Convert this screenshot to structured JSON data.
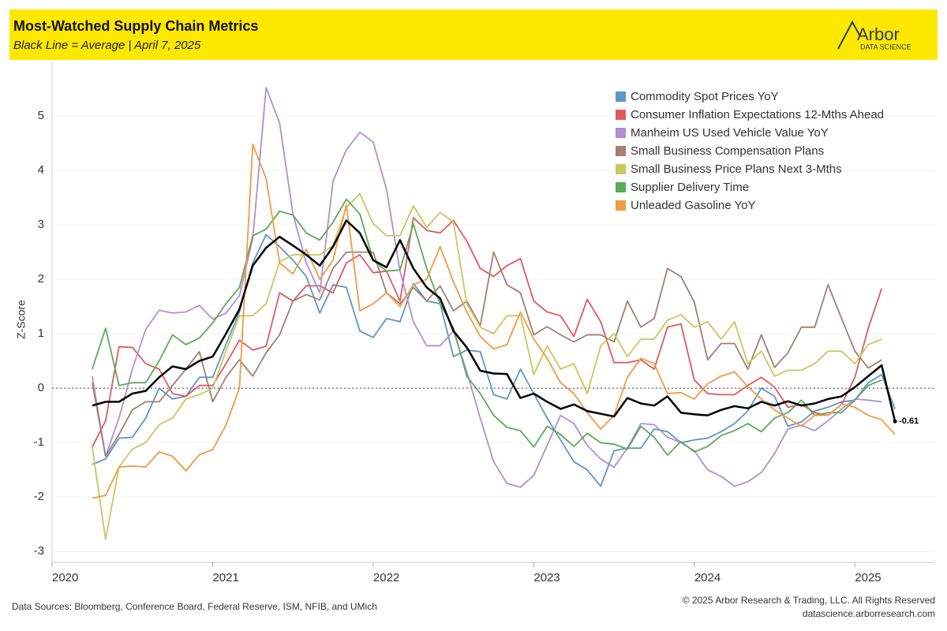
{
  "header": {
    "title": "Most-Watched Supply Chain Metrics",
    "subtitle": "Black Line = Average |  April 7, 2025",
    "logo": "Arbor",
    "logo_sub": "DATA SCIENCE"
  },
  "footer": {
    "sources": "Data Sources: Bloomberg, Conference Board, Federal Reserve, ISM, NFIB, and UMich",
    "copyright": "© 2025 Arbor Research & Trading, LLC. All Rights Reserved",
    "site": "datascience.arborresearch.com"
  },
  "chart_data": {
    "type": "line",
    "y_label": "Z-Score",
    "xlim": [
      2020,
      2025.5
    ],
    "xticks": [
      2020,
      2021,
      2022,
      2023,
      2024,
      2025
    ],
    "ylim": [
      -3.2,
      6
    ],
    "yticks": [
      -3,
      -2,
      -1,
      0,
      1,
      2,
      3,
      4,
      5
    ],
    "grid": true,
    "zero_line": true,
    "legend": "top-right",
    "x": [
      2020.25,
      2020.333,
      2020.417,
      2020.5,
      2020.583,
      2020.667,
      2020.75,
      2020.833,
      2020.917,
      2021.0,
      2021.083,
      2021.167,
      2021.25,
      2021.333,
      2021.417,
      2021.5,
      2021.583,
      2021.667,
      2021.75,
      2021.833,
      2021.917,
      2022.0,
      2022.083,
      2022.167,
      2022.25,
      2022.333,
      2022.417,
      2022.5,
      2022.583,
      2022.667,
      2022.75,
      2022.833,
      2022.917,
      2023.0,
      2023.083,
      2023.167,
      2023.25,
      2023.333,
      2023.417,
      2023.5,
      2023.583,
      2023.667,
      2023.75,
      2023.833,
      2023.917,
      2024.0,
      2024.083,
      2024.167,
      2024.25,
      2024.333,
      2024.417,
      2024.5,
      2024.583,
      2024.667,
      2024.75,
      2024.833,
      2024.917,
      2025.0,
      2025.083,
      2025.167,
      2025.25
    ],
    "series": [
      {
        "name": "Commodity Spot Prices YoY",
        "color": "#5b97c6",
        "values": [
          -1.4,
          -1.3,
          -0.92,
          -0.9,
          -0.55,
          0.0,
          -0.2,
          -0.15,
          0.2,
          0.2,
          0.8,
          1.4,
          2.3,
          2.82,
          2.6,
          2.35,
          2.05,
          1.38,
          1.9,
          1.85,
          1.05,
          0.93,
          1.28,
          1.22,
          1.92,
          1.6,
          1.55,
          0.58,
          0.7,
          0.67,
          -0.12,
          -0.2,
          0.35,
          -0.1,
          -0.55,
          -0.95,
          -1.35,
          -1.5,
          -1.8,
          -1.15,
          -1.1,
          -1.1,
          -0.75,
          -0.8,
          -1.0,
          -0.95,
          -0.92,
          -0.8,
          -0.65,
          -0.42,
          0.0,
          -0.15,
          -0.7,
          -0.62,
          -0.42,
          -0.35,
          -0.25,
          -0.22,
          0.1,
          0.25,
          -0.38
        ]
      },
      {
        "name": "Consumer Inflation Expectations 12-Mths Ahead",
        "color": "#e05a5b",
        "values": [
          -1.08,
          -0.6,
          0.76,
          0.75,
          0.45,
          0.35,
          -0.1,
          -0.15,
          0.05,
          0.05,
          0.45,
          0.88,
          0.7,
          0.77,
          1.75,
          1.6,
          1.88,
          1.88,
          1.75,
          2.3,
          2.45,
          2.12,
          2.15,
          1.6,
          3.13,
          2.9,
          2.85,
          3.08,
          2.7,
          2.2,
          2.05,
          2.25,
          2.38,
          1.6,
          1.4,
          1.33,
          0.95,
          1.63,
          1.22,
          0.47,
          0.47,
          0.52,
          0.35,
          1.12,
          1.18,
          0.15,
          -0.1,
          -0.12,
          -0.12,
          0.05,
          0.2,
          0.02,
          -0.35,
          -0.3,
          -0.45,
          -0.5,
          -0.3,
          0.2,
          1.1,
          1.83,
          null
        ]
      },
      {
        "name": "Manheim US Used Vehicle Value YoY",
        "color": "#b08fd3",
        "values": [
          0.22,
          -1.25,
          -0.55,
          0.35,
          1.08,
          1.43,
          1.38,
          1.4,
          1.52,
          1.27,
          1.38,
          1.7,
          2.75,
          5.52,
          4.87,
          3.2,
          2.3,
          1.75,
          3.8,
          4.38,
          4.7,
          4.52,
          3.65,
          2.15,
          1.22,
          0.78,
          0.78,
          1.05,
          0.3,
          -0.55,
          -1.35,
          -1.75,
          -1.82,
          -1.6,
          -1.05,
          -0.5,
          -0.65,
          -1.05,
          -1.3,
          -1.45,
          -1.1,
          -0.65,
          -0.67,
          -0.9,
          -1.0,
          -1.15,
          -1.5,
          -1.62,
          -1.8,
          -1.72,
          -1.55,
          -1.2,
          -0.75,
          -0.68,
          -0.78,
          -0.6,
          -0.38,
          -0.2,
          -0.22,
          -0.25,
          null
        ]
      },
      {
        "name": "Small Business Compensation Plans",
        "color": "#a47e72",
        "values": [
          0.1,
          -1.25,
          -0.85,
          -0.4,
          -0.25,
          -0.25,
          0.05,
          0.35,
          0.67,
          -0.25,
          0.2,
          0.52,
          0.22,
          0.65,
          0.98,
          1.6,
          1.72,
          1.62,
          2.2,
          2.5,
          2.5,
          2.5,
          1.75,
          1.55,
          1.85,
          1.6,
          1.88,
          1.42,
          1.6,
          1.15,
          2.5,
          1.9,
          1.75,
          0.98,
          1.13,
          0.98,
          0.85,
          0.98,
          0.98,
          0.85,
          1.6,
          1.12,
          1.28,
          2.2,
          2.05,
          1.58,
          0.52,
          0.82,
          0.82,
          0.35,
          0.98,
          0.38,
          0.65,
          1.12,
          1.12,
          1.9,
          1.28,
          0.68,
          0.37,
          0.52,
          null
        ]
      },
      {
        "name": "Small Business Price Plans Next 3-Mths",
        "color": "#c6c95e",
        "values": [
          -1.08,
          -2.78,
          -1.45,
          -1.12,
          -1.0,
          -0.67,
          -0.55,
          -0.2,
          -0.12,
          0.0,
          0.68,
          1.33,
          1.33,
          1.55,
          2.32,
          2.45,
          2.45,
          2.45,
          2.62,
          3.32,
          3.57,
          3.02,
          2.8,
          2.8,
          3.35,
          2.95,
          3.23,
          3.05,
          1.55,
          1.12,
          1.0,
          1.33,
          1.33,
          0.25,
          0.78,
          0.35,
          0.45,
          -0.1,
          0.78,
          1.0,
          0.58,
          0.9,
          0.9,
          1.25,
          1.35,
          1.12,
          1.22,
          0.9,
          1.22,
          0.45,
          0.68,
          0.22,
          0.33,
          0.33,
          0.45,
          0.68,
          0.68,
          0.45,
          0.8,
          0.9,
          null
        ]
      },
      {
        "name": "Supplier Delivery Time",
        "color": "#5aac58",
        "values": [
          0.35,
          1.1,
          0.05,
          0.1,
          0.1,
          0.5,
          0.98,
          0.8,
          0.92,
          1.2,
          1.55,
          1.85,
          2.8,
          2.92,
          3.25,
          3.18,
          2.85,
          2.72,
          3.05,
          3.47,
          3.2,
          2.35,
          2.15,
          2.17,
          3.02,
          2.2,
          1.55,
          1.1,
          0.22,
          -0.1,
          -0.5,
          -0.72,
          -0.78,
          -1.08,
          -0.7,
          -0.85,
          -1.07,
          -0.83,
          -1.0,
          -1.03,
          -1.12,
          -0.7,
          -0.9,
          -1.23,
          -0.98,
          -1.17,
          -1.07,
          -0.87,
          -0.78,
          -0.65,
          -0.8,
          -0.55,
          -0.45,
          -0.22,
          -0.5,
          -0.45,
          -0.45,
          -0.22,
          0.05,
          0.15,
          null
        ]
      },
      {
        "name": "Unleaded Gasoline YoY",
        "color": "#f39a45",
        "values": [
          -2.02,
          -1.97,
          -1.45,
          -1.43,
          -1.45,
          -1.17,
          -1.25,
          -1.52,
          -1.22,
          -1.13,
          -0.68,
          0.0,
          4.48,
          3.85,
          2.3,
          2.1,
          2.55,
          2.0,
          2.35,
          3.37,
          1.42,
          1.55,
          1.75,
          1.5,
          1.9,
          2.0,
          2.6,
          1.95,
          1.4,
          0.95,
          0.72,
          0.8,
          1.4,
          0.9,
          0.55,
          0.1,
          -0.1,
          -0.45,
          -0.75,
          -0.5,
          0.2,
          0.55,
          0.45,
          -0.1,
          -0.08,
          -0.2,
          0.08,
          0.22,
          0.3,
          0.03,
          -0.2,
          -0.4,
          -0.55,
          -0.7,
          -0.5,
          -0.5,
          -0.3,
          -0.35,
          -0.5,
          -0.58,
          -0.85
        ]
      }
    ],
    "average": {
      "color": "#000000",
      "values": [
        -0.32,
        -0.25,
        -0.25,
        -0.1,
        -0.05,
        0.2,
        0.4,
        0.35,
        0.5,
        0.58,
        1.0,
        1.45,
        2.25,
        2.58,
        2.78,
        2.62,
        2.45,
        2.25,
        2.6,
        3.08,
        2.85,
        2.35,
        2.22,
        2.72,
        2.2,
        1.85,
        1.65,
        1.05,
        0.75,
        0.32,
        0.27,
        0.26,
        -0.18,
        -0.1,
        -0.25,
        -0.38,
        -0.3,
        -0.42,
        -0.47,
        -0.52,
        -0.18,
        -0.28,
        -0.32,
        -0.15,
        -0.45,
        -0.48,
        -0.5,
        -0.4,
        -0.33,
        -0.37,
        -0.25,
        -0.32,
        -0.24,
        -0.32,
        -0.28,
        -0.2,
        -0.15,
        0.02,
        0.22,
        0.42,
        -0.61
      ]
    }
  }
}
